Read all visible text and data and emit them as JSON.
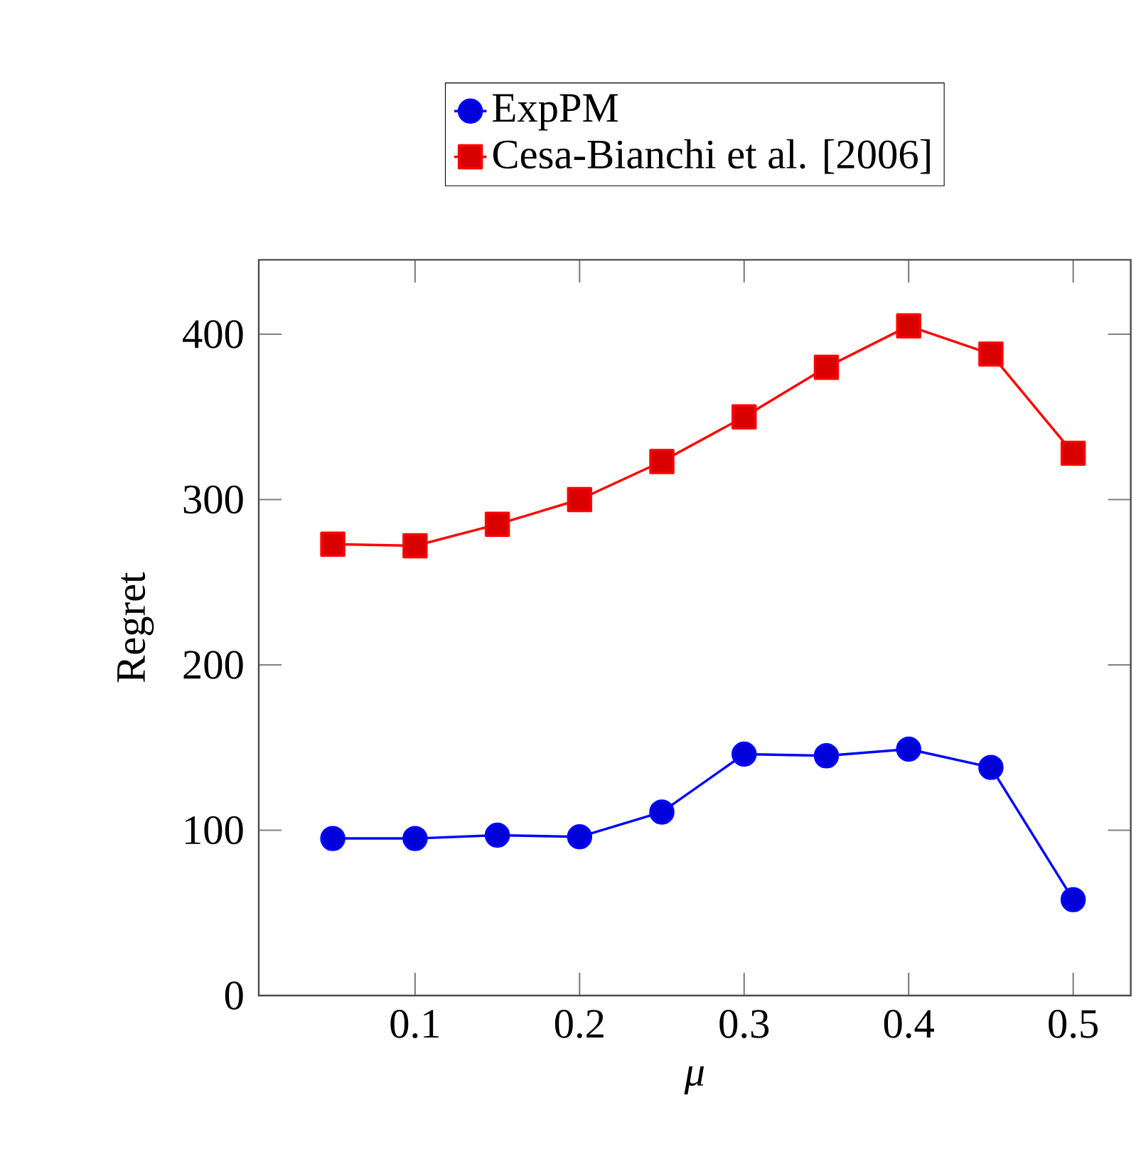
{
  "chart_data": {
    "type": "line",
    "xlabel": "μ",
    "ylabel": "Regret",
    "x": [
      0.05,
      0.1,
      0.15,
      0.2,
      0.25,
      0.3,
      0.35,
      0.4,
      0.45,
      0.5
    ],
    "series": [
      {
        "name": "ExpPM",
        "color": "#0000ff",
        "marker": "circle",
        "values": [
          95,
          95,
          97,
          96,
          111,
          146,
          145,
          149,
          138,
          58
        ]
      },
      {
        "name": "Cesa-Bianchi et al. [2006]",
        "color": "#ff0000",
        "marker": "square",
        "values": [
          273,
          272,
          285,
          300,
          323,
          350,
          380,
          405,
          388,
          328
        ]
      }
    ],
    "xlim": [
      0.005,
      0.535
    ],
    "ylim": [
      0,
      445
    ],
    "xticks": [
      0.1,
      0.2,
      0.3,
      0.4,
      0.5
    ],
    "yticks": [
      0,
      100,
      200,
      300,
      400
    ],
    "grid": false,
    "legend": "top",
    "line_style": "solid"
  }
}
